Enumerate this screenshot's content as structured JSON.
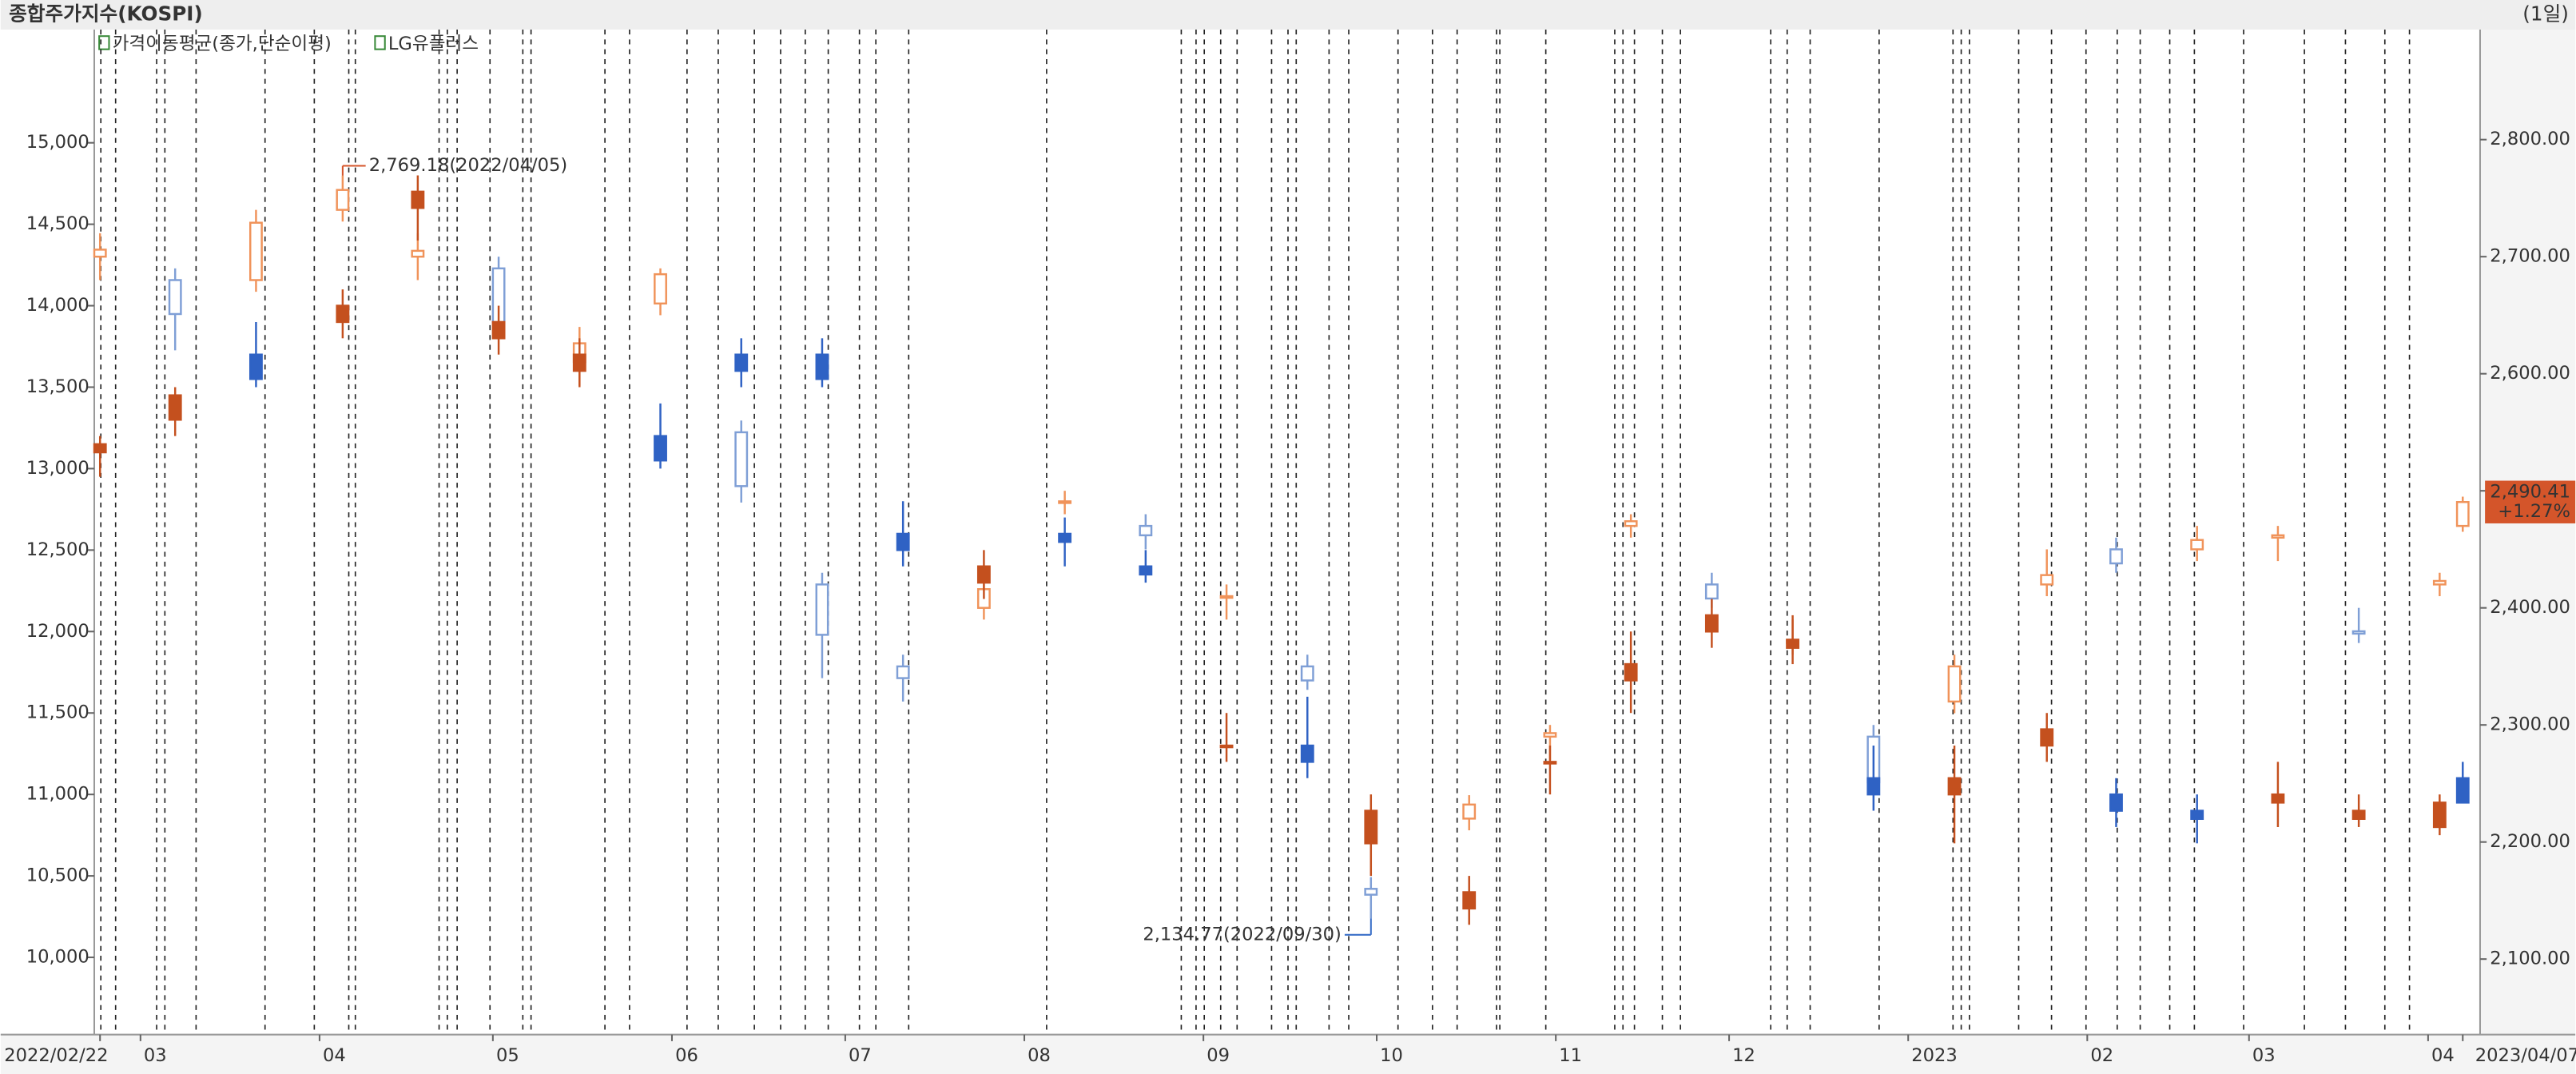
{
  "chart_data": {
    "type": "candlestick",
    "title": "종합주가지수(KOSPI)",
    "period": "(1일)",
    "legend": [
      "가격이동평균(종가,단순이평)",
      "LG유플러스"
    ],
    "x": [
      "2022-02-22",
      "2022-03-07",
      "2022-03-21",
      "2022-04-05",
      "2022-04-18",
      "2022-05-02",
      "2022-05-16",
      "2022-05-30",
      "2022-06-13",
      "2022-06-27",
      "2022-07-11",
      "2022-07-25",
      "2022-08-08",
      "2022-08-22",
      "2022-09-05",
      "2022-09-19",
      "2022-09-30",
      "2022-10-17",
      "2022-10-31",
      "2022-11-14",
      "2022-11-28",
      "2022-12-12",
      "2022-12-26",
      "2023-01-09",
      "2023-01-25",
      "2023-02-06",
      "2023-02-20",
      "2023-03-06",
      "2023-03-20",
      "2023-04-03",
      "2023-04-07"
    ],
    "xlim": [
      "2022-02-21",
      "2023-04-10"
    ],
    "xticks": [
      {
        "value": "2022-02-22",
        "label": "2022/02/22"
      },
      {
        "value": "2022-03-01",
        "label": "03"
      },
      {
        "value": "2022-04-01",
        "label": "04"
      },
      {
        "value": "2022-05-01",
        "label": "05"
      },
      {
        "value": "2022-06-01",
        "label": "06"
      },
      {
        "value": "2022-07-01",
        "label": "07"
      },
      {
        "value": "2022-08-01",
        "label": "08"
      },
      {
        "value": "2022-09-01",
        "label": "09"
      },
      {
        "value": "2022-10-01",
        "label": "10"
      },
      {
        "value": "2022-11-01",
        "label": "11"
      },
      {
        "value": "2022-12-01",
        "label": "12"
      },
      {
        "value": "2023-01-01",
        "label": "2023"
      },
      {
        "value": "2023-02-01",
        "label": "02"
      },
      {
        "value": "2023-03-01",
        "label": "03"
      },
      {
        "value": "2023-04-01",
        "label": "04"
      },
      {
        "value": "2023-04-07",
        "label": "2023/04/07"
      }
    ],
    "ylim": [
      9526,
      15695
    ],
    "yticks": [
      {
        "value": 10000,
        "label": "10,000"
      },
      {
        "value": 10500,
        "label": "10,500"
      },
      {
        "value": 11000,
        "label": "11,000"
      },
      {
        "value": 11500,
        "label": "11,500"
      },
      {
        "value": 12000,
        "label": "12,000"
      },
      {
        "value": 12500,
        "label": "12,500"
      },
      {
        "value": 13000,
        "label": "13,000"
      },
      {
        "value": 13500,
        "label": "13,500"
      },
      {
        "value": 14000,
        "label": "14,000"
      },
      {
        "value": 14500,
        "label": "14,500"
      },
      {
        "value": 15000,
        "label": "15,000"
      }
    ],
    "y2lim": [
      2035.5,
      2894
    ],
    "y2ticks": [
      {
        "value": 2100,
        "label": "2,100.00"
      },
      {
        "value": 2200,
        "label": "2,200.00"
      },
      {
        "value": 2300,
        "label": "2,300.00"
      },
      {
        "value": 2400,
        "label": "2,400.00"
      },
      {
        "value": 2500,
        "label": "2,500.00"
      },
      {
        "value": 2600,
        "label": "2,600.00"
      },
      {
        "value": 2700,
        "label": "2,700.00"
      },
      {
        "value": 2800,
        "label": "2,800.00"
      }
    ],
    "series": [
      {
        "name": "KOSPI",
        "axis": "y2",
        "hollow": true,
        "up_color": "#f0935a",
        "down_color": "#7f9fd6",
        "open": [
          2700,
          2680,
          2680,
          2740,
          2700,
          2690,
          2610,
          2660,
          2550,
          2420,
          2350,
          2400,
          2490,
          2470,
          2410,
          2350,
          2160,
          2220,
          2290,
          2470,
          2420,
          2370,
          2290,
          2320,
          2420,
          2450,
          2450,
          2460,
          2380,
          2420,
          2470
        ],
        "high": [
          2720,
          2690,
          2740,
          2769.18,
          2720,
          2700,
          2640,
          2690,
          2560,
          2430,
          2360,
          2420,
          2500,
          2480,
          2420,
          2360,
          2170,
          2240,
          2300,
          2480,
          2430,
          2390,
          2300,
          2360,
          2450,
          2460,
          2470,
          2470,
          2400,
          2430,
          2495
        ],
        "low": [
          2680,
          2620,
          2670,
          2730,
          2680,
          2630,
          2590,
          2650,
          2490,
          2340,
          2320,
          2390,
          2480,
          2450,
          2390,
          2330,
          2134.77,
          2210,
          2270,
          2460,
          2400,
          2360,
          2240,
          2310,
          2410,
          2430,
          2440,
          2440,
          2370,
          2410,
          2465
        ],
        "close": [
          2706,
          2651,
          2729,
          2757,
          2705,
          2644,
          2626,
          2685,
          2504,
          2377,
          2340,
          2416,
          2491,
          2462,
          2410,
          2338,
          2155,
          2232,
          2293,
          2474,
          2408,
          2372,
          2251,
          2350,
          2428,
          2438,
          2458,
          2462,
          2378,
          2423,
          2490.41
        ]
      },
      {
        "name": "LG유플러스",
        "axis": "y",
        "hollow": false,
        "up_color": "#c4501e",
        "down_color": "#2f62c4",
        "open": [
          13100,
          13300,
          13700,
          13900,
          14600,
          13800,
          13600,
          13200,
          13700,
          13700,
          12600,
          12300,
          12600,
          12400,
          11300,
          11300,
          10700,
          10300,
          11200,
          11700,
          12000,
          11900,
          11100,
          11000,
          11300,
          11000,
          10900,
          10950,
          10850,
          10800,
          11100
        ],
        "high": [
          13200,
          13500,
          13900,
          14100,
          14800,
          14000,
          13800,
          13400,
          13800,
          13800,
          12800,
          12500,
          12700,
          12500,
          11500,
          11600,
          11000,
          10500,
          11300,
          12000,
          12200,
          12100,
          11300,
          11300,
          11500,
          11100,
          11000,
          11200,
          11000,
          11000,
          11200
        ],
        "low": [
          12950,
          13200,
          13500,
          13800,
          14400,
          13700,
          13500,
          13000,
          13500,
          13500,
          12400,
          12200,
          12400,
          12300,
          11200,
          11100,
          10500,
          10200,
          11000,
          11500,
          11900,
          11800,
          10900,
          10700,
          11200,
          10800,
          10700,
          10800,
          10800,
          10750,
          10950
        ],
        "close": [
          13150,
          13450,
          13550,
          14000,
          14700,
          13900,
          13700,
          13050,
          13600,
          13550,
          12500,
          12400,
          12550,
          12350,
          11300,
          11200,
          10900,
          10400,
          11200,
          11800,
          12100,
          11950,
          11000,
          11100,
          11400,
          10900,
          10850,
          11000,
          10900,
          10950,
          10950
        ]
      }
    ],
    "annotations": [
      {
        "text": "2,769.18(2022/04/05)",
        "color": "#d4552a"
      },
      {
        "text": "2,134.77(2022/09/30)",
        "color": "#3a6fc8"
      }
    ],
    "last_price": {
      "value": "2,490.41",
      "change": "+1.27%",
      "color": "#d4552a"
    }
  }
}
